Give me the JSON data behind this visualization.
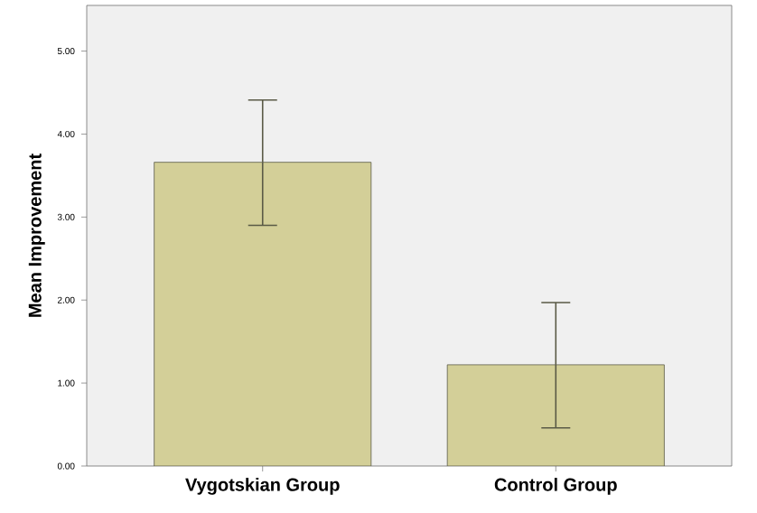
{
  "chart_data": {
    "type": "bar",
    "ylabel": "Mean Improvement",
    "categories": [
      "Vygotskian Group",
      "Control Group"
    ],
    "values": [
      3.66,
      1.22
    ],
    "errors": [
      [
        2.9,
        4.41
      ],
      [
        0.46,
        1.97
      ]
    ],
    "color": "#d3cf98",
    "ylim": [
      0,
      5.55
    ],
    "yticks": [
      {
        "value": 0,
        "label": "0.00"
      },
      {
        "value": 1,
        "label": "1.00"
      },
      {
        "value": 2,
        "label": "2.00"
      },
      {
        "value": 3,
        "label": "3.00"
      },
      {
        "value": 4,
        "label": "4.00"
      },
      {
        "value": 5,
        "label": "5.00"
      }
    ],
    "grid": false
  }
}
